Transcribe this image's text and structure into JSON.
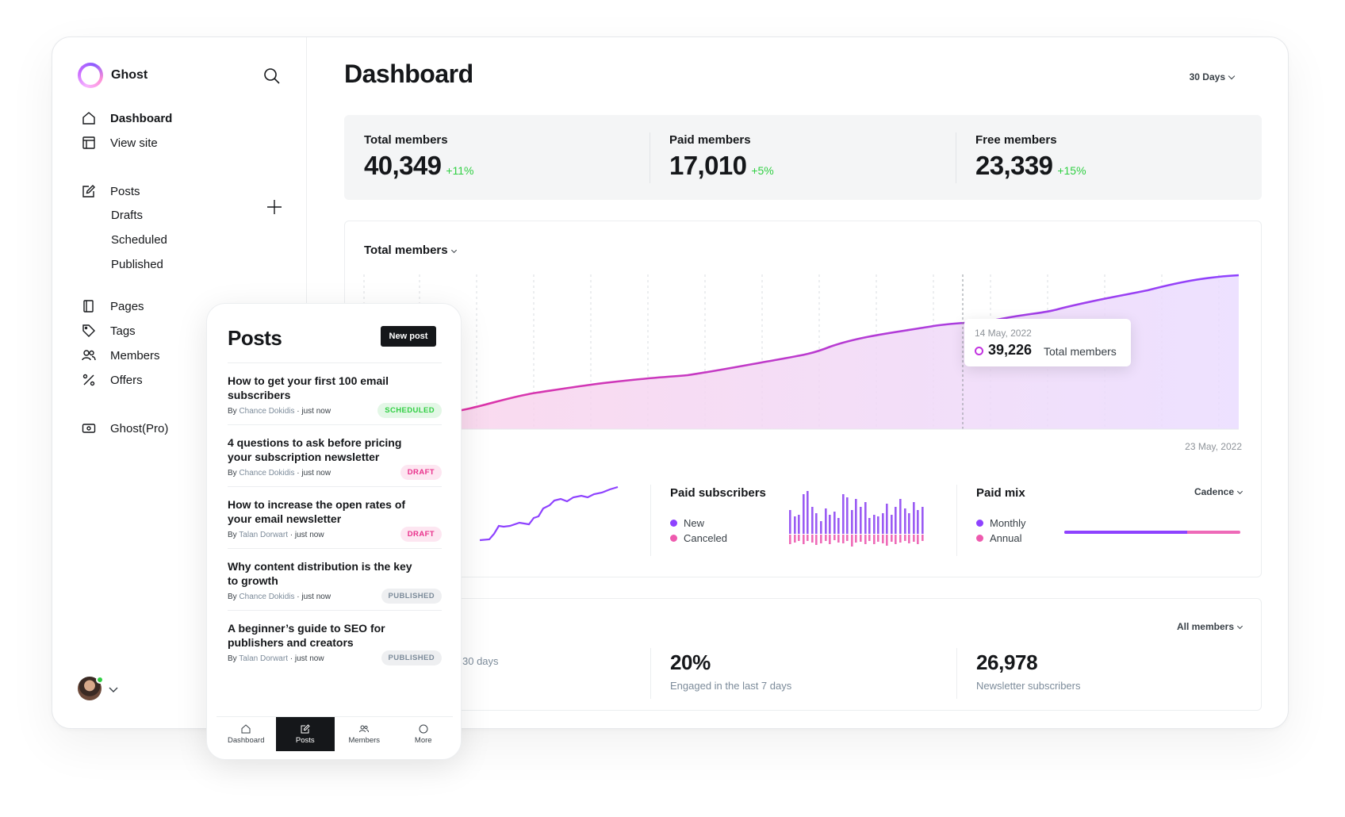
{
  "brand": {
    "name": "Ghost"
  },
  "sidebar": {
    "dashboard": "Dashboard",
    "view_site": "View site",
    "posts": "Posts",
    "drafts": "Drafts",
    "scheduled": "Scheduled",
    "published": "Published",
    "pages": "Pages",
    "tags": "Tags",
    "members": "Members",
    "offers": "Offers",
    "ghost_pro": "Ghost(Pro)"
  },
  "header": {
    "title": "Dashboard",
    "range": "30 Days"
  },
  "kpis": [
    {
      "label": "Total members",
      "value": "40,349",
      "delta": "+11%"
    },
    {
      "label": "Paid members",
      "value": "17,010",
      "delta": "+5%"
    },
    {
      "label": "Free members",
      "value": "23,339",
      "delta": "+15%"
    }
  ],
  "main_chart": {
    "metric": "Total members",
    "tooltip": {
      "date": "14 May, 2022",
      "value": "39,226",
      "label": "Total members"
    },
    "end_date": "23 May, 2022"
  },
  "paid_subscribers": {
    "title": "Paid subscribers",
    "legend": [
      "New",
      "Canceled"
    ]
  },
  "paid_mix": {
    "title": "Paid mix",
    "select": "Cadence",
    "legend": [
      "Monthly",
      "Annual"
    ],
    "monthly_share": 0.7
  },
  "engagement": {
    "filter": "All members",
    "stats": [
      {
        "value": "",
        "label": "30 days"
      },
      {
        "value": "20%",
        "label": "Engaged in the last 7 days"
      },
      {
        "value": "26,978",
        "label": "Newsletter subscribers"
      }
    ]
  },
  "colors": {
    "accent": "#c233e0",
    "purple": "#8e42ff",
    "pink": "#ee5aae",
    "green": "#30cf43"
  },
  "mobile": {
    "title": "Posts",
    "new_post": "New post",
    "posts": [
      {
        "title": "How to get your first 100 email subscribers",
        "by": "By",
        "author": "Chance Dokidis",
        "time": "· just now",
        "status": "SCHEDULED"
      },
      {
        "title": "4 questions to ask before pricing your subscription newsletter",
        "by": "By",
        "author": "Chance Dokidis",
        "time": "· just now",
        "status": "DRAFT"
      },
      {
        "title": "How to increase the open rates of your email newsletter",
        "by": "By",
        "author": "Talan Dorwart",
        "time": "· just now",
        "status": "DRAFT"
      },
      {
        "title": "Why content distribution is the key to growth",
        "by": "By",
        "author": "Chance Dokidis",
        "time": "· just now",
        "status": "PUBLISHED"
      },
      {
        "title": "A beginner’s guide to SEO for publishers and creators",
        "by": "By",
        "author": "Talan Dorwart",
        "time": "· just now",
        "status": "PUBLISHED"
      }
    ],
    "tabs": [
      "Dashboard",
      "Posts",
      "Members",
      "More"
    ]
  }
}
